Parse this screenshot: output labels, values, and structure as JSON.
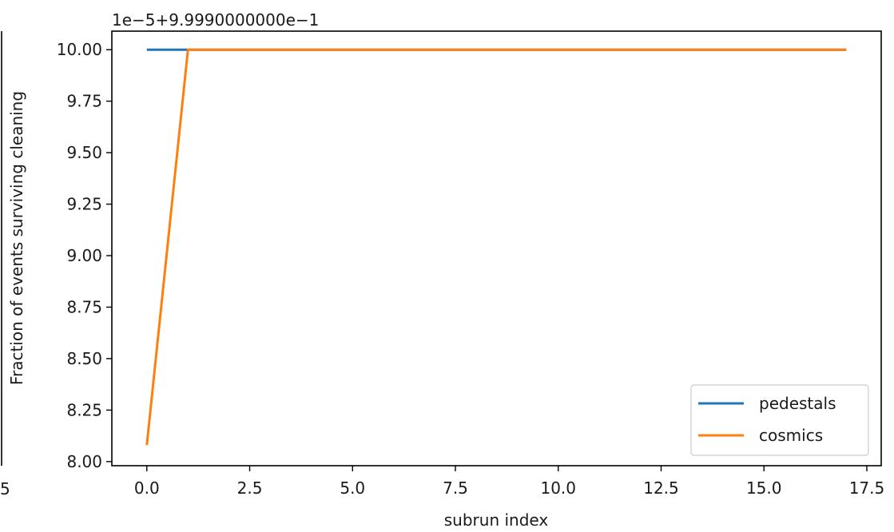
{
  "chart_data": {
    "type": "line",
    "offset_label": "1e−5+9.9990000000e−1",
    "xlabel": "subrun index",
    "ylabel": "Fraction of events surviving cleaning",
    "xlim": [
      -0.85,
      17.85
    ],
    "ylim": [
      7.98,
      10.09
    ],
    "xticks": [
      0.0,
      2.5,
      5.0,
      7.5,
      10.0,
      12.5,
      15.0,
      17.5
    ],
    "xtick_labels": [
      "0.0",
      "2.5",
      "5.0",
      "7.5",
      "10.0",
      "12.5",
      "15.0",
      "17.5"
    ],
    "yticks": [
      8.0,
      8.25,
      8.5,
      8.75,
      9.0,
      9.25,
      9.5,
      9.75,
      10.0
    ],
    "ytick_labels": [
      "8.00",
      "8.25",
      "8.50",
      "8.75",
      "9.00",
      "9.25",
      "9.50",
      "9.75",
      "10.00"
    ],
    "left_clipped_label": "5",
    "grid": false,
    "legend_position": "lower-right",
    "series": [
      {
        "name": "pedestals",
        "color": "#1f77b4",
        "x": [
          0,
          1,
          2,
          3,
          4,
          5,
          6,
          7,
          8,
          9,
          10,
          11,
          12,
          13,
          14,
          15,
          16,
          17
        ],
        "y": [
          10.0,
          10.0,
          10.0,
          10.0,
          10.0,
          10.0,
          10.0,
          10.0,
          10.0,
          10.0,
          10.0,
          10.0,
          10.0,
          10.0,
          10.0,
          10.0,
          10.0,
          10.0
        ]
      },
      {
        "name": "cosmics",
        "color": "#ff7f0e",
        "x": [
          0,
          1,
          2,
          3,
          4,
          5,
          6,
          7,
          8,
          9,
          10,
          11,
          12,
          13,
          14,
          15,
          16,
          17
        ],
        "y": [
          8.08,
          10.0,
          10.0,
          10.0,
          10.0,
          10.0,
          10.0,
          10.0,
          10.0,
          10.0,
          10.0,
          10.0,
          10.0,
          10.0,
          10.0,
          10.0,
          10.0,
          10.0
        ]
      }
    ]
  }
}
